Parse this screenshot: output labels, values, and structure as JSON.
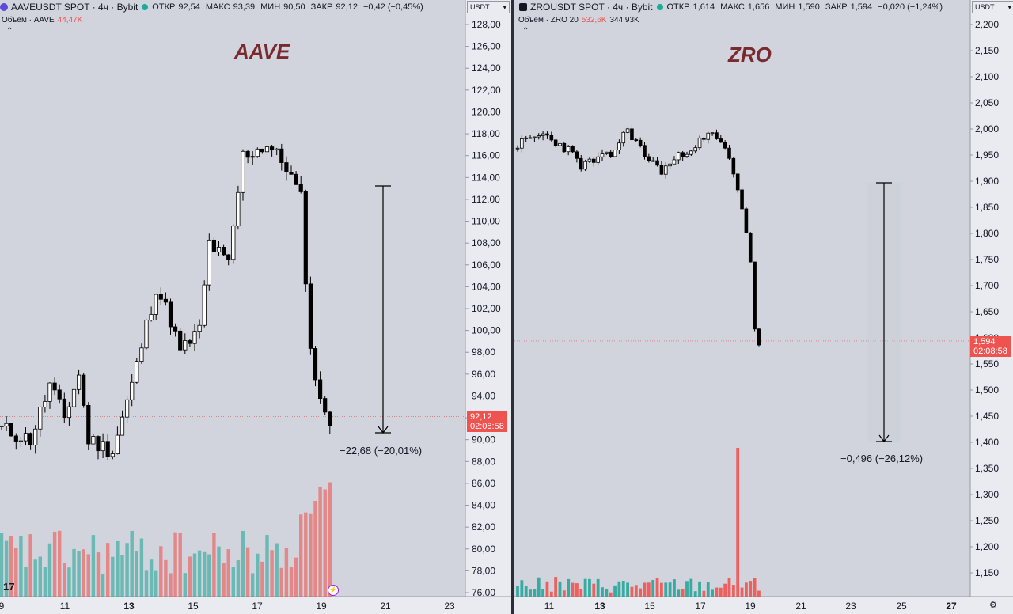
{
  "left": {
    "symbol": "AAVEUSDT SPOT · 4ч · Bybit",
    "ohlc": [
      {
        "k": "ОТКР",
        "v": "92,54"
      },
      {
        "k": "МАКС",
        "v": "93,39"
      },
      {
        "k": "МИН",
        "v": "90,50"
      },
      {
        "k": "ЗАКР",
        "v": "92,12"
      }
    ],
    "change": "−0,42 (−0,45%)",
    "volume_label": "Объём · AAVE",
    "volume_value": "44,47K",
    "title": "AAVE",
    "currency": "USDT",
    "price_ticks": [
      "128,00",
      "126,00",
      "124,00",
      "122,00",
      "120,00",
      "118,00",
      "116,00",
      "114,00",
      "112,00",
      "110,00",
      "108,00",
      "106,00",
      "104,00",
      "102,00",
      "100,00",
      "98,00",
      "96,00",
      "94,00",
      "92,00",
      "90,00",
      "88,00",
      "86,00",
      "84,00",
      "82,00",
      "80,00",
      "78,00",
      "76,00"
    ],
    "last_price": "92,12",
    "countdown": "02:08:58",
    "measure": "−22,68 (−20,01%)",
    "time_ticks": [
      "9",
      "11",
      "13",
      "15",
      "17",
      "19",
      "21",
      "23"
    ],
    "bold_ticks": [
      "13"
    ],
    "tv_logo": "17"
  },
  "right": {
    "symbol": "ZROUSDT SPOT · 4ч · Bybit",
    "ohlc": [
      {
        "k": "ОТКР",
        "v": "1,614"
      },
      {
        "k": "МАКС",
        "v": "1,656"
      },
      {
        "k": "МИН",
        "v": "1,590"
      },
      {
        "k": "ЗАКР",
        "v": "1,594"
      }
    ],
    "change": "−0,020 (−1,24%)",
    "volume_label": "Объём · ZRO 20",
    "volume_value": "532,6K",
    "volume_value2": "344,93K",
    "title": "ZRO",
    "currency": "USDT",
    "price_ticks": [
      "2,200",
      "2,150",
      "2,100",
      "2,050",
      "2,000",
      "1,950",
      "1,900",
      "1,850",
      "1,800",
      "1,750",
      "1,700",
      "1,650",
      "1,600",
      "1,550",
      "1,500",
      "1,450",
      "1,400",
      "1,350",
      "1,300",
      "1,250",
      "1,200",
      "1,150"
    ],
    "last_price": "1,594",
    "countdown": "02:08:58",
    "measure": "−0,496 (−26,12%)",
    "time_ticks": [
      "11",
      "13",
      "15",
      "17",
      "19",
      "21",
      "23",
      "25",
      "27"
    ],
    "bold_ticks": [
      "13",
      "27"
    ]
  },
  "colors": {
    "up": "#ffffff",
    "down": "#000000",
    "vol_up": "#26a69a",
    "vol_down": "#ef5350",
    "accent": "#ef5350",
    "title": "#7a2a2f"
  }
}
